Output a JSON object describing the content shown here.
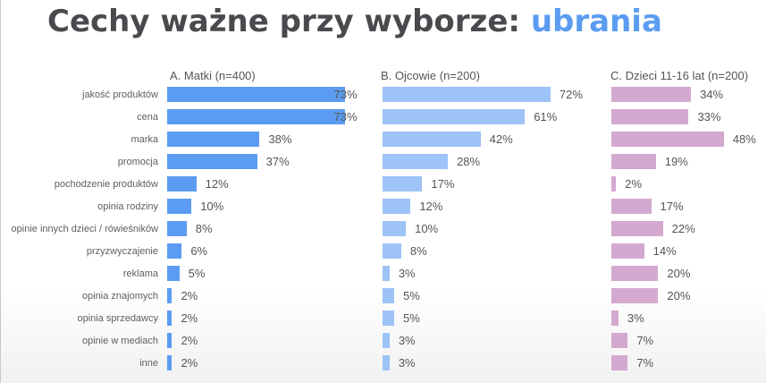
{
  "title": {
    "prefix": "Cechy ważne przy wyborze: ",
    "accent": "ubrania",
    "accent_color": "#5b9cf2"
  },
  "chart_data": {
    "type": "bar",
    "orientation": "horizontal",
    "title": "Cechy ważne przy wyborze: ubrania",
    "categories": [
      "jakość produktów",
      "cena",
      "marka",
      "promocja",
      "pochodzenie produktów",
      "opinia rodziny",
      "opinie innych dzieci / rówieśników",
      "przyzwyczajenie",
      "reklama",
      "opinia znajomych",
      "opinia sprzedawcy",
      "opinie w mediach",
      "inne"
    ],
    "series": [
      {
        "name": "A. Matki (n=400)",
        "color": "#5b9cf2",
        "values": [
          73,
          73,
          38,
          37,
          12,
          10,
          8,
          6,
          5,
          2,
          2,
          2,
          2
        ],
        "labels": [
          "73%",
          "73%",
          "38%",
          "37%",
          "12%",
          "10%",
          "8%",
          "6%",
          "5%",
          "2%",
          "2%",
          "2%",
          "2%"
        ]
      },
      {
        "name": "B. Ojcowie (n=200)",
        "color": "#9dc3f7",
        "values": [
          72,
          61,
          42,
          28,
          17,
          12,
          10,
          8,
          3,
          5,
          5,
          3,
          3
        ],
        "labels": [
          "72%",
          "61%",
          "42%",
          "28%",
          "17%",
          "12%",
          "10%",
          "8%",
          "3%",
          "5%",
          "5%",
          "3%",
          "3%"
        ]
      },
      {
        "name": "C. Dzieci 11-16 lat (n=200)",
        "color": "#d4a9cf",
        "values": [
          34,
          33,
          48,
          19,
          2,
          17,
          22,
          14,
          20,
          20,
          3,
          7,
          7
        ],
        "labels": [
          "34%",
          "33%",
          "48%",
          "19%",
          "2%",
          "17%",
          "22%",
          "14%",
          "20%",
          "20%",
          "3%",
          "7%",
          "7%"
        ]
      }
    ],
    "xlabel": "",
    "ylabel": "",
    "grid": false,
    "legend": "panel titles above each column"
  }
}
